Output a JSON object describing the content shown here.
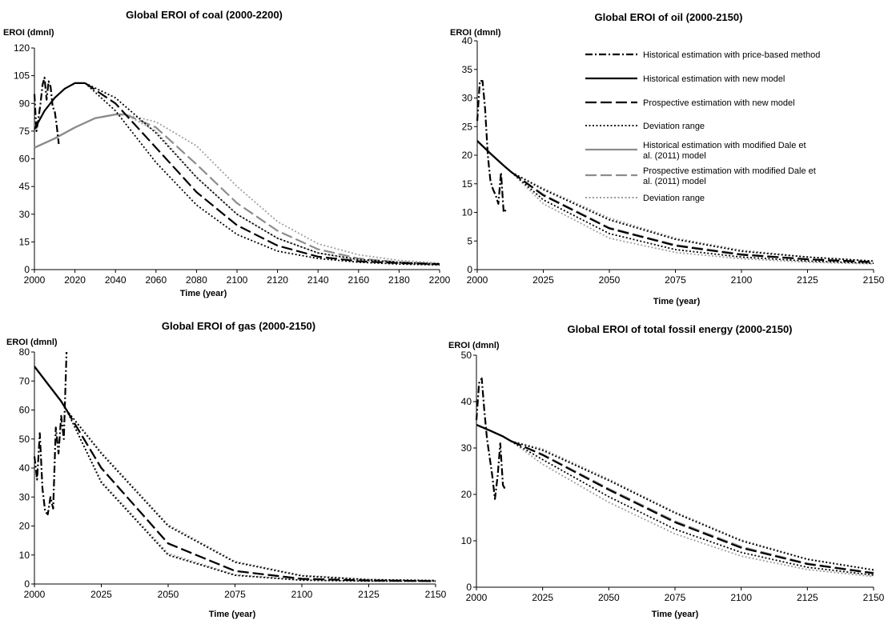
{
  "figure": {
    "legend": {
      "placement": "top-right of oil panel",
      "entries": [
        {
          "label": "Historical estimation with price-based method",
          "color": "#000000",
          "dash": "dashdot"
        },
        {
          "label": "Historical estimation with new model",
          "color": "#000000",
          "dash": "solid"
        },
        {
          "label": "Prospective estimation with new model",
          "color": "#000000",
          "dash": "longdash"
        },
        {
          "label": "Deviation range",
          "color": "#000000",
          "dash": "dotted"
        },
        {
          "label": "Historical estimation with modified Dale et al. (2011) model",
          "color": "#8c8c8c",
          "dash": "solid"
        },
        {
          "label": "Prospective estimation with modified Dale et al. (2011) model",
          "color": "#8c8c8c",
          "dash": "longdash"
        },
        {
          "label": "Deviation range",
          "color": "#8c8c8c",
          "dash": "dotted"
        }
      ]
    }
  },
  "chart_data": [
    {
      "type": "line",
      "title": "Global EROI of coal (2000-2200)",
      "xlabel": "Time (year)",
      "ylabel": "EROI (dmnl)",
      "xlim": [
        2000,
        2200
      ],
      "ylim": [
        0,
        120
      ],
      "xticks": [
        2000,
        2020,
        2040,
        2060,
        2080,
        2100,
        2120,
        2140,
        2160,
        2180,
        2200
      ],
      "yticks": [
        0,
        15,
        30,
        45,
        60,
        75,
        90,
        105,
        120
      ],
      "grid": false,
      "series": [
        {
          "style": "price",
          "x": [
            2000,
            2001,
            2002,
            2003,
            2004,
            2005,
            2006,
            2007,
            2008,
            2009,
            2010,
            2011,
            2012
          ],
          "y": [
            95,
            75,
            82,
            90,
            100,
            104,
            92,
            102,
            99,
            88,
            86,
            78,
            68
          ]
        },
        {
          "style": "new_hist",
          "x": [
            2000,
            2005,
            2010,
            2015,
            2020,
            2025
          ],
          "y": [
            76,
            86,
            93,
            98,
            101,
            101
          ]
        },
        {
          "style": "new_pros",
          "x": [
            2025,
            2040,
            2060,
            2080,
            2100,
            2120,
            2140,
            2160,
            2180,
            2200
          ],
          "y": [
            101,
            90,
            66,
            42,
            24,
            13,
            7,
            4.5,
            3.5,
            3
          ]
        },
        {
          "style": "new_dev",
          "x": [
            2025,
            2040,
            2060,
            2080,
            2100,
            2120,
            2140,
            2160,
            2180,
            2200
          ],
          "y": [
            101,
            93,
            74,
            50,
            30,
            17,
            9,
            5.5,
            4,
            3
          ]
        },
        {
          "style": "new_dev",
          "x": [
            2025,
            2040,
            2060,
            2080,
            2100,
            2120,
            2140,
            2160,
            2180,
            2200
          ],
          "y": [
            101,
            86,
            58,
            35,
            19,
            10,
            6,
            4,
            3,
            2.5
          ]
        },
        {
          "style": "dale_hist",
          "x": [
            2000,
            2010,
            2020,
            2030,
            2040,
            2045
          ],
          "y": [
            66,
            71,
            77,
            82,
            84,
            84
          ]
        },
        {
          "style": "dale_pros",
          "x": [
            2045,
            2060,
            2080,
            2100,
            2120,
            2140,
            2160,
            2180,
            2200
          ],
          "y": [
            84,
            77,
            57,
            36,
            21,
            11,
            6,
            4,
            3
          ]
        },
        {
          "style": "dale_dev",
          "x": [
            2045,
            2060,
            2080,
            2100,
            2120,
            2140,
            2160,
            2180,
            2200
          ],
          "y": [
            84,
            80,
            67,
            45,
            26,
            14,
            8,
            5,
            3.5
          ]
        },
        {
          "style": "dale_dev",
          "x": [
            2045,
            2060,
            2080,
            2100,
            2120,
            2140,
            2160,
            2180,
            2200
          ],
          "y": [
            84,
            75,
            50,
            30,
            17,
            9,
            5,
            3.5,
            2.5
          ]
        }
      ]
    },
    {
      "type": "line",
      "title": "Global EROI of oil (2000-2150)",
      "xlabel": "Time (year)",
      "ylabel": "EROI (dmnl)",
      "xlim": [
        2000,
        2150
      ],
      "ylim": [
        0,
        40
      ],
      "xticks": [
        2000,
        2025,
        2050,
        2075,
        2100,
        2125,
        2150
      ],
      "yticks": [
        0,
        5,
        10,
        15,
        20,
        25,
        30,
        35,
        40
      ],
      "grid": false,
      "series": [
        {
          "style": "price",
          "x": [
            2000,
            2001,
            2002,
            2003,
            2004,
            2005,
            2006,
            2007,
            2008,
            2009,
            2010,
            2011
          ],
          "y": [
            26,
            33,
            33,
            28,
            20,
            15.5,
            14,
            13,
            11.5,
            17,
            10,
            10.5
          ]
        },
        {
          "style": "new_hist",
          "x": [
            2000,
            2005,
            2010,
            2013
          ],
          "y": [
            22.5,
            20.3,
            18.2,
            17
          ]
        },
        {
          "style": "new_pros",
          "x": [
            2013,
            2025,
            2050,
            2075,
            2100,
            2125,
            2150
          ],
          "y": [
            17,
            13,
            7.2,
            4.2,
            2.6,
            1.8,
            1.3
          ]
        },
        {
          "style": "new_dev",
          "x": [
            2013,
            2025,
            2050,
            2075,
            2100,
            2125,
            2150
          ],
          "y": [
            17,
            14,
            8.7,
            5.3,
            3.2,
            2.2,
            1.5
          ]
        },
        {
          "style": "new_dev",
          "x": [
            2013,
            2025,
            2050,
            2075,
            2100,
            2125,
            2150
          ],
          "y": [
            17,
            12.2,
            6.3,
            3.5,
            2.2,
            1.5,
            1.1
          ]
        },
        {
          "style": "dale_hist",
          "x": [
            2000,
            2005,
            2010,
            2013
          ],
          "y": [
            22.5,
            20.3,
            18.2,
            17
          ]
        },
        {
          "style": "dale_pros",
          "x": [
            2013,
            2025,
            2050,
            2075,
            2100,
            2125,
            2150
          ],
          "y": [
            17,
            13.1,
            7.3,
            4.3,
            2.7,
            1.8,
            1.3
          ]
        },
        {
          "style": "dale_dev",
          "x": [
            2013,
            2025,
            2050,
            2075,
            2100,
            2125,
            2150
          ],
          "y": [
            17,
            14.2,
            9,
            5.5,
            3.4,
            2.2,
            1.5
          ]
        },
        {
          "style": "dale_dev",
          "x": [
            2013,
            2025,
            2050,
            2075,
            2100,
            2125,
            2150
          ],
          "y": [
            17,
            11.5,
            5.5,
            3,
            1.9,
            1.3,
            1
          ]
        }
      ]
    },
    {
      "type": "line",
      "title": "Global EROI of gas (2000-2150)",
      "xlabel": "Time (year)",
      "ylabel": "EROI (dmnl)",
      "xlim": [
        2000,
        2150
      ],
      "ylim": [
        0,
        80
      ],
      "xticks": [
        2000,
        2025,
        2050,
        2075,
        2100,
        2125,
        2150
      ],
      "yticks": [
        0,
        10,
        20,
        30,
        40,
        50,
        60,
        70,
        80
      ],
      "grid": false,
      "series": [
        {
          "style": "price",
          "x": [
            2000,
            2001,
            2002,
            2003,
            2004,
            2005,
            2006,
            2007,
            2008,
            2009,
            2010,
            2011,
            2012
          ],
          "y": [
            44,
            36,
            52,
            33,
            25,
            24,
            30,
            26,
            54,
            45,
            58,
            50,
            80
          ]
        },
        {
          "style": "new_hist",
          "x": [
            2000,
            2005,
            2010,
            2012
          ],
          "y": [
            75,
            69,
            63,
            60
          ]
        },
        {
          "style": "new_pros",
          "x": [
            2012,
            2025,
            2050,
            2075,
            2100,
            2125,
            2150
          ],
          "y": [
            60,
            40,
            14,
            4.5,
            1.8,
            1.2,
            1
          ]
        },
        {
          "style": "new_dev",
          "x": [
            2012,
            2025,
            2050,
            2075,
            2100,
            2125,
            2150
          ],
          "y": [
            60,
            45,
            20,
            7.5,
            2.8,
            1.5,
            1.2
          ]
        },
        {
          "style": "new_dev",
          "x": [
            2012,
            2025,
            2050,
            2075,
            2100,
            2125,
            2150
          ],
          "y": [
            60,
            35,
            10,
            3,
            1.3,
            1,
            1
          ]
        },
        {
          "style": "dale_hist",
          "x": [
            2000,
            2005,
            2010,
            2012
          ],
          "y": [
            75,
            69,
            63,
            60
          ]
        },
        {
          "style": "dale_pros",
          "x": [
            2012,
            2025,
            2050,
            2075,
            2100,
            2125,
            2150
          ],
          "y": [
            60,
            40,
            14,
            4.5,
            1.8,
            1.2,
            1
          ]
        },
        {
          "style": "dale_dev",
          "x": [
            2012,
            2025,
            2050,
            2075,
            2100,
            2125,
            2150
          ],
          "y": [
            60,
            45.5,
            20.5,
            7.8,
            3,
            1.6,
            1.2
          ]
        },
        {
          "style": "dale_dev",
          "x": [
            2012,
            2025,
            2050,
            2075,
            2100,
            2125,
            2150
          ],
          "y": [
            60,
            35.5,
            10.5,
            3.2,
            1.4,
            1,
            1
          ]
        }
      ]
    },
    {
      "type": "line",
      "title": "Global EROI of total fossil energy (2000-2150)",
      "xlabel": "Time (year)",
      "ylabel": "EROI (dmnl)",
      "xlim": [
        2000,
        2150
      ],
      "ylim": [
        0,
        50
      ],
      "xticks": [
        2000,
        2025,
        2050,
        2075,
        2100,
        2125,
        2150
      ],
      "yticks": [
        0,
        10,
        20,
        30,
        40,
        50
      ],
      "grid": false,
      "series": [
        {
          "style": "price",
          "x": [
            2000,
            2001,
            2002,
            2003,
            2004,
            2005,
            2006,
            2007,
            2008,
            2009,
            2010,
            2011
          ],
          "y": [
            36,
            44,
            45,
            38,
            32,
            28,
            24,
            19,
            24,
            31,
            22,
            21
          ]
        },
        {
          "style": "new_hist",
          "x": [
            2000,
            2005,
            2010,
            2013
          ],
          "y": [
            35,
            33.8,
            32.5,
            31.5
          ]
        },
        {
          "style": "new_pros",
          "x": [
            2013,
            2025,
            2050,
            2075,
            2100,
            2125,
            2150
          ],
          "y": [
            31.5,
            28.5,
            21,
            14,
            8.5,
            5,
            3
          ]
        },
        {
          "style": "new_dev",
          "x": [
            2013,
            2025,
            2050,
            2075,
            2100,
            2125,
            2150
          ],
          "y": [
            31.5,
            29.5,
            23,
            16,
            10,
            6,
            3.7
          ]
        },
        {
          "style": "new_dev",
          "x": [
            2013,
            2025,
            2050,
            2075,
            2100,
            2125,
            2150
          ],
          "y": [
            31.5,
            27.5,
            19.5,
            12.5,
            7.5,
            4.3,
            2.6
          ]
        },
        {
          "style": "dale_hist",
          "x": [
            2000,
            2005,
            2010,
            2013
          ],
          "y": [
            35,
            33.8,
            32.5,
            31.5
          ]
        },
        {
          "style": "dale_pros",
          "x": [
            2013,
            2025,
            2050,
            2075,
            2100,
            2125,
            2150
          ],
          "y": [
            31.5,
            28.6,
            21.2,
            14.2,
            8.7,
            5.1,
            3.1
          ]
        },
        {
          "style": "dale_dev",
          "x": [
            2013,
            2025,
            2050,
            2075,
            2100,
            2125,
            2150
          ],
          "y": [
            31.5,
            29.8,
            23.3,
            16.2,
            10.2,
            6.1,
            3.8
          ]
        },
        {
          "style": "dale_dev",
          "x": [
            2013,
            2025,
            2050,
            2075,
            2100,
            2125,
            2150
          ],
          "y": [
            31.5,
            26.5,
            18.3,
            11.5,
            6.7,
            3.8,
            2.3
          ]
        }
      ]
    }
  ]
}
